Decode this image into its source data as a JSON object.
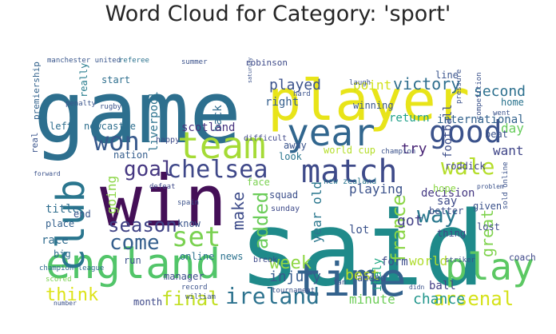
{
  "chart_data": {
    "type": "wordcloud",
    "title": "Word Cloud for Category: 'sport'",
    "colormap": "viridis",
    "background": "#ffffff",
    "words": [
      {
        "text": "said",
        "color": "#1f8a8a"
      },
      {
        "text": "game",
        "color": "#2d6f8e"
      },
      {
        "text": "player",
        "color": "#e8e419"
      },
      {
        "text": "win",
        "color": "#440f57"
      },
      {
        "text": "england",
        "color": "#52c569"
      },
      {
        "text": "time",
        "color": "#33628d"
      },
      {
        "text": "year",
        "color": "#31668e"
      },
      {
        "text": "team",
        "color": "#a5db36"
      },
      {
        "text": "club",
        "color": "#2a768e"
      },
      {
        "text": "match",
        "color": "#3e4a89"
      },
      {
        "text": "play",
        "color": "#5cc863"
      },
      {
        "text": "good",
        "color": "#3b528b"
      },
      {
        "text": "won",
        "color": "#38598c"
      },
      {
        "text": "chelsea",
        "color": "#3f4889"
      },
      {
        "text": "set",
        "color": "#7ad151"
      },
      {
        "text": "season",
        "color": "#414487"
      },
      {
        "text": "wale",
        "color": "#b5de2b"
      },
      {
        "text": "goal",
        "color": "#453781"
      },
      {
        "text": "ireland",
        "color": "#2c728e"
      },
      {
        "text": "final",
        "color": "#c2df23"
      },
      {
        "text": "come",
        "color": "#355f8d"
      },
      {
        "text": "arsenal",
        "color": "#d5e21a"
      },
      {
        "text": "added",
        "color": "#6ccd5a"
      },
      {
        "text": "france",
        "color": "#8bd646"
      },
      {
        "text": "way",
        "color": "#2a788e"
      },
      {
        "text": "week",
        "color": "#8fd744"
      },
      {
        "text": "think",
        "color": "#dde318"
      },
      {
        "text": "victory",
        "color": "#2e6e8e"
      },
      {
        "text": "played",
        "color": "#3b528b"
      },
      {
        "text": "injury",
        "color": "#375b8d"
      },
      {
        "text": "second",
        "color": "#2d708e"
      },
      {
        "text": "best",
        "color": "#bddf26"
      },
      {
        "text": "chance",
        "color": "#1f958b"
      },
      {
        "text": "point",
        "color": "#d2e21b"
      },
      {
        "text": "got",
        "color": "#424086"
      },
      {
        "text": "going",
        "color": "#8bd646"
      },
      {
        "text": "make",
        "color": "#3e4c8a"
      },
      {
        "text": "back",
        "color": "#2f6b8e"
      },
      {
        "text": "world",
        "color": "#b0dd2f"
      },
      {
        "text": "minute",
        "color": "#6ece58"
      },
      {
        "text": "try",
        "color": "#482475"
      },
      {
        "text": "want",
        "color": "#404688"
      },
      {
        "text": "day",
        "color": "#67cc5c"
      },
      {
        "text": "great",
        "color": "#7fd34e"
      },
      {
        "text": "year old",
        "color": "#2a778e"
      },
      {
        "text": "scotland",
        "color": "#46327e"
      },
      {
        "text": "liverpool",
        "color": "#2c728e"
      },
      {
        "text": "nation",
        "color": "#355e8d"
      },
      {
        "text": "playing",
        "color": "#3b528b"
      },
      {
        "text": "decision",
        "color": "#453882"
      },
      {
        "text": "football",
        "color": "#3d4e8a"
      },
      {
        "text": "international",
        "color": "#33638d"
      },
      {
        "text": "italy",
        "color": "#22a884"
      },
      {
        "text": "month",
        "color": "#3e4989"
      },
      {
        "text": "title",
        "color": "#2e6d8e"
      },
      {
        "text": "race",
        "color": "#2f6c8e"
      },
      {
        "text": "right",
        "color": "#355f8d"
      },
      {
        "text": "return",
        "color": "#1fa088"
      },
      {
        "text": "lot",
        "color": "#3b528b"
      },
      {
        "text": "form",
        "color": "#3d4d8a"
      },
      {
        "text": "ball",
        "color": "#433e85"
      },
      {
        "text": "say",
        "color": "#3e4a89"
      },
      {
        "text": "start",
        "color": "#2e6f8e"
      },
      {
        "text": "really",
        "color": "#287d8e"
      },
      {
        "text": "end",
        "color": "#39568c"
      },
      {
        "text": "place",
        "color": "#34618d"
      },
      {
        "text": "big",
        "color": "#2e6e8e"
      },
      {
        "text": "know",
        "color": "#3a548c"
      },
      {
        "text": "squad",
        "color": "#3c4f8a"
      },
      {
        "text": "lost",
        "color": "#3e4a89"
      },
      {
        "text": "thing",
        "color": "#3f4788"
      },
      {
        "text": "home",
        "color": "#2b748e"
      },
      {
        "text": "beat",
        "color": "#3b528b"
      },
      {
        "text": "line",
        "color": "#3a548c"
      },
      {
        "text": "left",
        "color": "#2e6e8e"
      },
      {
        "text": "coach",
        "color": "#3f4889"
      },
      {
        "text": "online news",
        "color": "#2c728e"
      },
      {
        "text": "manager",
        "color": "#3d4d8a"
      },
      {
        "text": "winning",
        "color": "#39568c"
      },
      {
        "text": "roddick",
        "color": "#404588"
      },
      {
        "text": "face",
        "color": "#7ad151"
      },
      {
        "text": "given",
        "color": "#3b528b"
      },
      {
        "text": "hope",
        "color": "#8bd646"
      },
      {
        "text": "ahead",
        "color": "#3c508b"
      },
      {
        "text": "saturday",
        "color": "#3b528b"
      },
      {
        "text": "newcastle",
        "color": "#2e6e8e"
      },
      {
        "text": "away",
        "color": "#3a548c"
      },
      {
        "text": "look",
        "color": "#2a768e"
      },
      {
        "text": "happy",
        "color": "#3e4a89"
      },
      {
        "text": "world cup",
        "color": "#b5de2b"
      },
      {
        "text": "sunday",
        "color": "#3e4a89"
      },
      {
        "text": "better",
        "color": "#3d4e8a"
      },
      {
        "text": "premiership",
        "color": "#33638d"
      },
      {
        "text": "real",
        "color": "#3a548c"
      },
      {
        "text": "robinson",
        "color": "#3e4a89"
      },
      {
        "text": "manchester united",
        "color": "#39568c"
      },
      {
        "text": "referee",
        "color": "#2c728e"
      },
      {
        "text": "rugby",
        "color": "#3b528b"
      },
      {
        "text": "spain",
        "color": "#3b528b"
      },
      {
        "text": "striker",
        "color": "#3b528b"
      },
      {
        "text": "difficult",
        "color": "#3f4788"
      },
      {
        "text": "champion league",
        "color": "#2f6b8e"
      },
      {
        "text": "penalty",
        "color": "#3a548c"
      },
      {
        "text": "champion",
        "color": "#3b528b"
      },
      {
        "text": "defeat",
        "color": "#3e4a89"
      },
      {
        "text": "break",
        "color": "#3e4a89"
      },
      {
        "text": "record",
        "color": "#3b528b"
      },
      {
        "text": "run",
        "color": "#3b528b"
      },
      {
        "text": "fan",
        "color": "#3b528b"
      },
      {
        "text": "went",
        "color": "#3b528b"
      },
      {
        "text": "pressure",
        "color": "#3b528b"
      },
      {
        "text": "new zealand",
        "color": "#2a768e"
      },
      {
        "text": "tournament",
        "color": "#3b528b"
      },
      {
        "text": "competition",
        "color": "#3b528b"
      },
      {
        "text": "sold online",
        "color": "#3b528b"
      },
      {
        "text": "william",
        "color": "#3b528b"
      },
      {
        "text": "scored",
        "color": "#7ad151"
      },
      {
        "text": "summer",
        "color": "#3b528b"
      },
      {
        "text": "laugh",
        "color": "#3b528b"
      },
      {
        "text": "hard",
        "color": "#3b528b"
      },
      {
        "text": "number",
        "color": "#3b528b"
      },
      {
        "text": "didn",
        "color": "#3b528b"
      },
      {
        "text": "forward",
        "color": "#3b528b"
      },
      {
        "text": "problem",
        "color": "#3b528b"
      }
    ]
  }
}
